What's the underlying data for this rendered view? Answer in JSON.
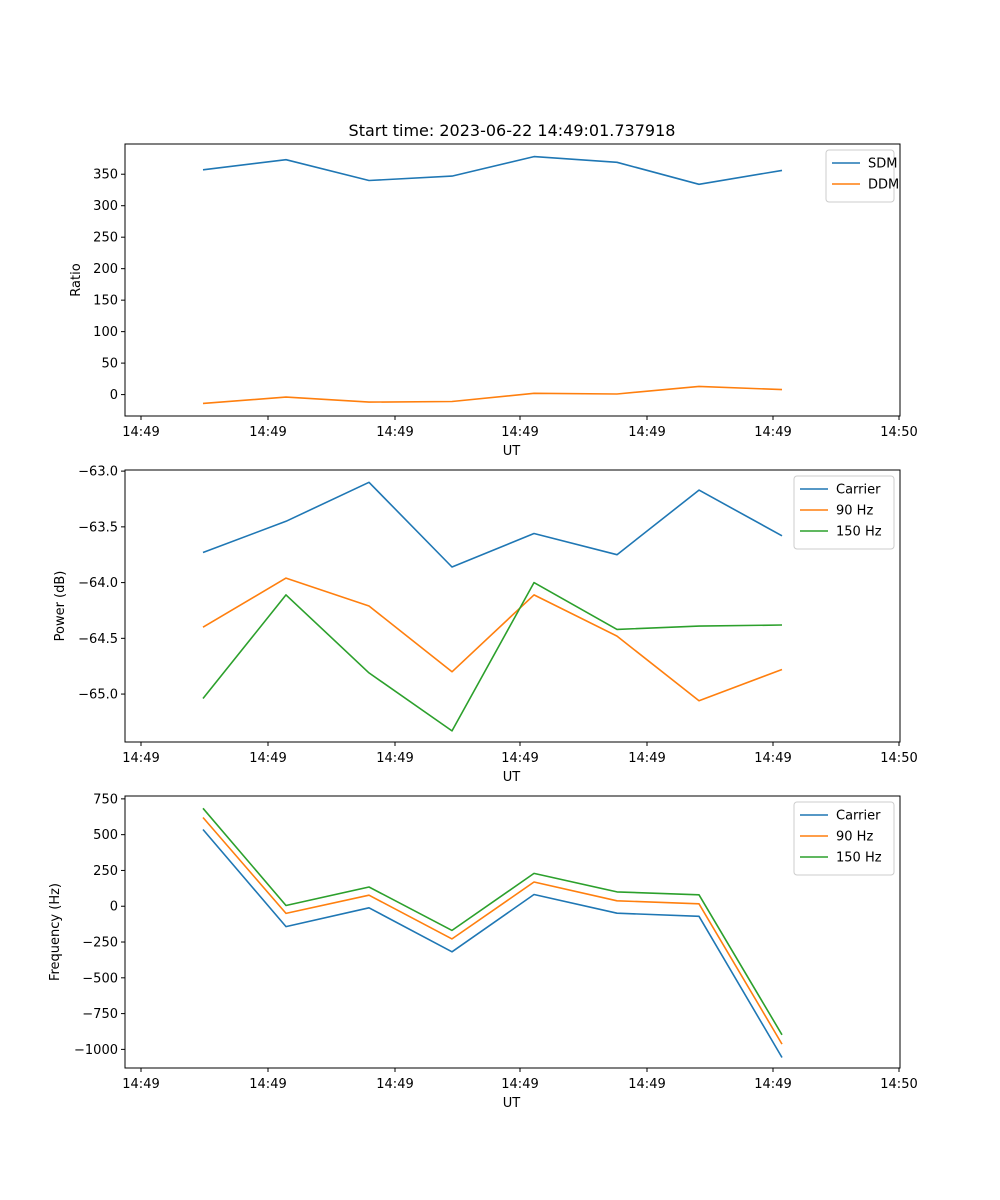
{
  "figure_title": "Start time: 2023-06-22 14:49:01.737918",
  "colors": {
    "blue": "#1f77b4",
    "orange": "#ff7f0e",
    "green": "#2ca02c"
  },
  "chart_data": [
    {
      "type": "line",
      "title": "Start time: 2023-06-22 14:49:01.737918",
      "xlabel": "UT",
      "ylabel": "Ratio",
      "x_tick_labels": [
        "14:49",
        "14:49",
        "14:49",
        "14:49",
        "14:49",
        "14:49",
        "14:50"
      ],
      "y_ticks": [
        0,
        50,
        100,
        150,
        200,
        250,
        300,
        350
      ],
      "y_tick_labels": [
        "0",
        "50",
        "100",
        "150",
        "200",
        "250",
        "300",
        "350"
      ],
      "ylim": [
        -34,
        398
      ],
      "legend": "top-right",
      "series": [
        {
          "name": "SDM",
          "color": "#1f77b4",
          "values": [
            357,
            373,
            340,
            347,
            378,
            369,
            334,
            356
          ]
        },
        {
          "name": "DDM",
          "color": "#ff7f0e",
          "values": [
            -14,
            -4,
            -12,
            -11,
            2,
            1,
            13,
            8
          ]
        }
      ]
    },
    {
      "type": "line",
      "title": "",
      "xlabel": "UT",
      "ylabel": "Power (dB)",
      "x_tick_labels": [
        "14:49",
        "14:49",
        "14:49",
        "14:49",
        "14:49",
        "14:49",
        "14:50"
      ],
      "y_ticks": [
        -65.0,
        -64.5,
        -64.0,
        -63.5,
        -63.0
      ],
      "y_tick_labels": [
        "−65.0",
        "−64.5",
        "−64.0",
        "−63.5",
        "−63.0"
      ],
      "ylim": [
        -65.43,
        -62.99
      ],
      "legend": "top-right",
      "series": [
        {
          "name": "Carrier",
          "color": "#1f77b4",
          "values": [
            -63.73,
            -63.45,
            -63.1,
            -63.86,
            -63.56,
            -63.75,
            -63.17,
            -63.58
          ]
        },
        {
          "name": "90 Hz",
          "color": "#ff7f0e",
          "values": [
            -64.4,
            -63.96,
            -64.21,
            -64.8,
            -64.11,
            -64.48,
            -65.06,
            -64.78
          ]
        },
        {
          "name": "150 Hz",
          "color": "#2ca02c",
          "values": [
            -65.04,
            -64.11,
            -64.81,
            -65.33,
            -64.0,
            -64.42,
            -64.39,
            -64.38
          ]
        }
      ]
    },
    {
      "type": "line",
      "title": "",
      "xlabel": "UT",
      "ylabel": "Frequency (Hz)",
      "x_tick_labels": [
        "14:49",
        "14:49",
        "14:49",
        "14:49",
        "14:49",
        "14:49",
        "14:50"
      ],
      "y_ticks": [
        -1000,
        -750,
        -500,
        -250,
        0,
        250,
        500,
        750
      ],
      "y_tick_labels": [
        "−1000",
        "−750",
        "−500",
        "−250",
        "0",
        "250",
        "500",
        "750"
      ],
      "ylim": [
        -1130,
        770
      ],
      "legend": "top-right",
      "series": [
        {
          "name": "Carrier",
          "color": "#1f77b4",
          "values": [
            536,
            -142,
            -11,
            -318,
            82,
            -49,
            -70,
            -1057
          ]
        },
        {
          "name": "90 Hz",
          "color": "#ff7f0e",
          "values": [
            620,
            -50,
            77,
            -228,
            169,
            38,
            17,
            -963
          ]
        },
        {
          "name": "150 Hz",
          "color": "#2ca02c",
          "values": [
            684,
            5,
            134,
            -169,
            229,
            100,
            80,
            -898
          ]
        }
      ]
    }
  ]
}
